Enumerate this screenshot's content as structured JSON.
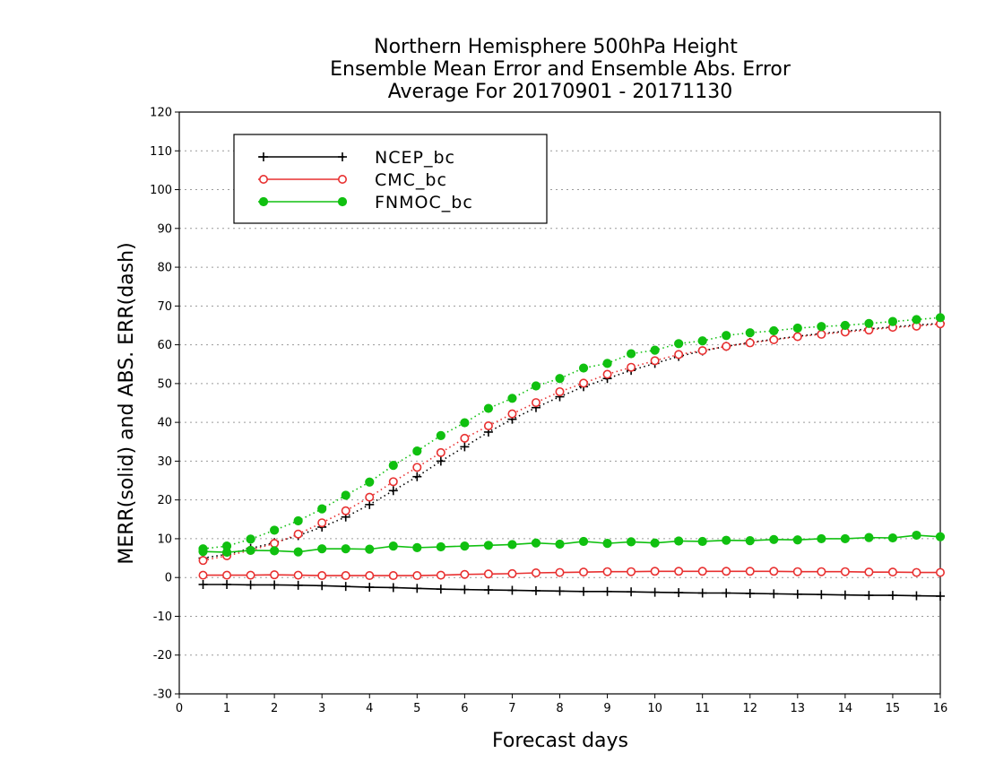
{
  "chart_data": {
    "type": "line",
    "title": [
      "Northern Hemisphere 500hPa Height",
      "Ensemble Mean Error and Ensemble Abs. Error",
      "Average For 20170901 - 20171130"
    ],
    "xlabel": "Forecast days",
    "ylabel": "MERR(solid) and ABS. ERR(dash)",
    "xlim": [
      0,
      16
    ],
    "ylim": [
      -30,
      120
    ],
    "xticks": [
      0,
      1,
      2,
      3,
      4,
      5,
      6,
      7,
      8,
      9,
      10,
      11,
      12,
      13,
      14,
      15,
      16
    ],
    "yticks": [
      -30,
      -20,
      -10,
      0,
      10,
      20,
      30,
      40,
      50,
      60,
      70,
      80,
      90,
      100,
      110,
      120
    ],
    "grid": "horizontal dotted",
    "legend_position": "top-left",
    "x": [
      0.5,
      1,
      1.5,
      2,
      2.5,
      3,
      3.5,
      4,
      4.5,
      5,
      5.5,
      6,
      6.5,
      7,
      7.5,
      8,
      8.5,
      9,
      9.5,
      10,
      10.5,
      11,
      11.5,
      12,
      12.5,
      13,
      13.5,
      14,
      14.5,
      15,
      15.5,
      16
    ],
    "series": [
      {
        "name": "NCEP_bc",
        "color": "#000000",
        "marker": "plus",
        "merr": [
          -1.8,
          -1.8,
          -1.9,
          -1.9,
          -2.0,
          -2.1,
          -2.3,
          -2.5,
          -2.6,
          -2.8,
          -3.0,
          -3.1,
          -3.2,
          -3.3,
          -3.4,
          -3.5,
          -3.6,
          -3.6,
          -3.7,
          -3.8,
          -3.9,
          -4.0,
          -4.0,
          -4.1,
          -4.2,
          -4.3,
          -4.4,
          -4.5,
          -4.6,
          -4.6,
          -4.7,
          -4.8
        ],
        "abs_err": [
          5.0,
          6.0,
          7.5,
          9.0,
          10.8,
          13.0,
          15.6,
          18.8,
          22.4,
          26.0,
          30.0,
          33.7,
          37.5,
          40.8,
          43.8,
          46.6,
          49.2,
          51.3,
          53.4,
          55.2,
          57.0,
          58.4,
          59.6,
          60.6,
          61.4,
          62.2,
          62.9,
          63.5,
          64.1,
          64.6,
          65.1,
          65.5
        ]
      },
      {
        "name": "CMC_bc",
        "color": "#e83030",
        "marker": "open-circle",
        "merr": [
          0.6,
          0.6,
          0.6,
          0.7,
          0.6,
          0.5,
          0.5,
          0.5,
          0.5,
          0.5,
          0.6,
          0.8,
          0.9,
          1.0,
          1.2,
          1.3,
          1.4,
          1.5,
          1.5,
          1.6,
          1.6,
          1.6,
          1.6,
          1.6,
          1.6,
          1.5,
          1.5,
          1.5,
          1.4,
          1.4,
          1.3,
          1.3
        ],
        "abs_err": [
          4.4,
          5.6,
          7.0,
          8.8,
          11.2,
          14.1,
          17.2,
          20.7,
          24.7,
          28.4,
          32.2,
          35.9,
          39.1,
          42.2,
          45.1,
          47.9,
          50.1,
          52.4,
          54.2,
          55.9,
          57.5,
          58.5,
          59.6,
          60.5,
          61.3,
          62.1,
          62.7,
          63.3,
          63.8,
          64.5,
          64.8,
          65.4
        ]
      },
      {
        "name": "FNMOC_bc",
        "color": "#10c010",
        "marker": "filled-circle",
        "merr": [
          6.7,
          6.5,
          7.0,
          6.9,
          6.6,
          7.4,
          7.4,
          7.3,
          8.1,
          7.7,
          7.9,
          8.1,
          8.3,
          8.5,
          8.9,
          8.6,
          9.3,
          8.8,
          9.2,
          8.9,
          9.4,
          9.3,
          9.6,
          9.5,
          9.8,
          9.7,
          10.0,
          10.0,
          10.3,
          10.2,
          10.9,
          10.5
        ],
        "abs_err": [
          7.4,
          8.1,
          9.9,
          12.2,
          14.6,
          17.7,
          21.2,
          24.6,
          28.9,
          32.6,
          36.6,
          39.9,
          43.6,
          46.2,
          49.4,
          51.3,
          54.0,
          55.2,
          57.7,
          58.6,
          60.3,
          61.0,
          62.4,
          63.1,
          63.6,
          64.3,
          64.7,
          65.0,
          65.5,
          66.0,
          66.5,
          67.0
        ]
      }
    ]
  }
}
